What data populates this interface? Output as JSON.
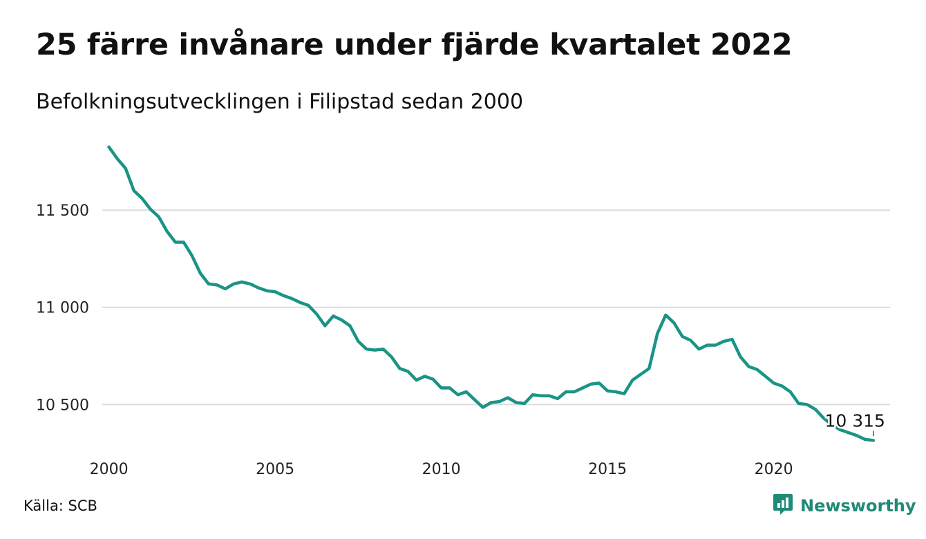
{
  "header": {
    "title": "25 färre invånare under fjärde kvartalet 2022",
    "subtitle": "Befolkningsutvecklingen i Filipstad sedan 2000"
  },
  "footer": {
    "source": "Källa: SCB",
    "brand": "Newsworthy",
    "brand_icon": "bar-chart-speech-bubble-icon"
  },
  "colors": {
    "line": "#1a9485",
    "grid": "#dddddd",
    "brand": "#1f8a78"
  },
  "chart_data": {
    "type": "line",
    "title": "25 färre invånare under fjärde kvartalet 2022",
    "subtitle": "Befolkningsutvecklingen i Filipstad sedan 2000",
    "xlabel": "",
    "ylabel": "",
    "x_ticks": [
      "2000",
      "2005",
      "2010",
      "2015",
      "2020"
    ],
    "x_tick_values": [
      2000,
      2005,
      2010,
      2015,
      2020
    ],
    "y_ticks": [
      "10 500",
      "11 000",
      "11 500"
    ],
    "y_tick_values": [
      10500,
      11000,
      11500
    ],
    "xlim": [
      1999.8,
      2023.5
    ],
    "ylim": [
      10270,
      11870
    ],
    "grid": true,
    "legend": "none",
    "annotation": {
      "text": "10 315",
      "x": 2023.0,
      "y": 10315
    },
    "series": [
      {
        "x": [
          2000.0,
          2000.25,
          2000.5,
          2000.75,
          2001.0,
          2001.25,
          2001.5,
          2001.75,
          2002.0,
          2002.25,
          2002.5,
          2002.75,
          2003.0,
          2003.25,
          2003.5,
          2003.75,
          2004.0,
          2004.25,
          2004.5,
          2004.75,
          2005.0,
          2005.25,
          2005.5,
          2005.75,
          2006.0,
          2006.25,
          2006.5,
          2006.75,
          2007.0,
          2007.25,
          2007.5,
          2007.75,
          2008.0,
          2008.25,
          2008.5,
          2008.75,
          2009.0,
          2009.25,
          2009.5,
          2009.75,
          2010.0,
          2010.25,
          2010.5,
          2010.75,
          2011.0,
          2011.25,
          2011.5,
          2011.75,
          2012.0,
          2012.25,
          2012.5,
          2012.75,
          2013.0,
          2013.25,
          2013.5,
          2013.75,
          2014.0,
          2014.25,
          2014.5,
          2014.75,
          2015.0,
          2015.25,
          2015.5,
          2015.75,
          2016.0,
          2016.25,
          2016.5,
          2016.75,
          2017.0,
          2017.25,
          2017.5,
          2017.75,
          2018.0,
          2018.25,
          2018.5,
          2018.75,
          2019.0,
          2019.25,
          2019.5,
          2019.75,
          2020.0,
          2020.25,
          2020.5,
          2020.75,
          2021.0,
          2021.25,
          2021.5,
          2021.75,
          2022.0,
          2022.25,
          2022.5,
          2022.75,
          2023.0
        ],
        "values": [
          11825,
          11765,
          11715,
          11600,
          11560,
          11505,
          11465,
          11390,
          11335,
          11335,
          11265,
          11175,
          11120,
          11115,
          11095,
          11120,
          11130,
          11120,
          11100,
          11085,
          11080,
          11060,
          11045,
          11025,
          11010,
          10965,
          10905,
          10955,
          10935,
          10905,
          10825,
          10785,
          10780,
          10785,
          10745,
          10685,
          10670,
          10625,
          10645,
          10630,
          10585,
          10585,
          10550,
          10565,
          10525,
          10485,
          10510,
          10515,
          10535,
          10510,
          10505,
          10550,
          10545,
          10545,
          10530,
          10565,
          10565,
          10585,
          10605,
          10610,
          10570,
          10565,
          10555,
          10625,
          10655,
          10685,
          10865,
          10960,
          10920,
          10850,
          10830,
          10785,
          10805,
          10805,
          10825,
          10835,
          10745,
          10695,
          10680,
          10645,
          10610,
          10595,
          10565,
          10505,
          10500,
          10475,
          10430,
          10395,
          10370,
          10355,
          10340,
          10320,
          10315
        ]
      }
    ]
  }
}
